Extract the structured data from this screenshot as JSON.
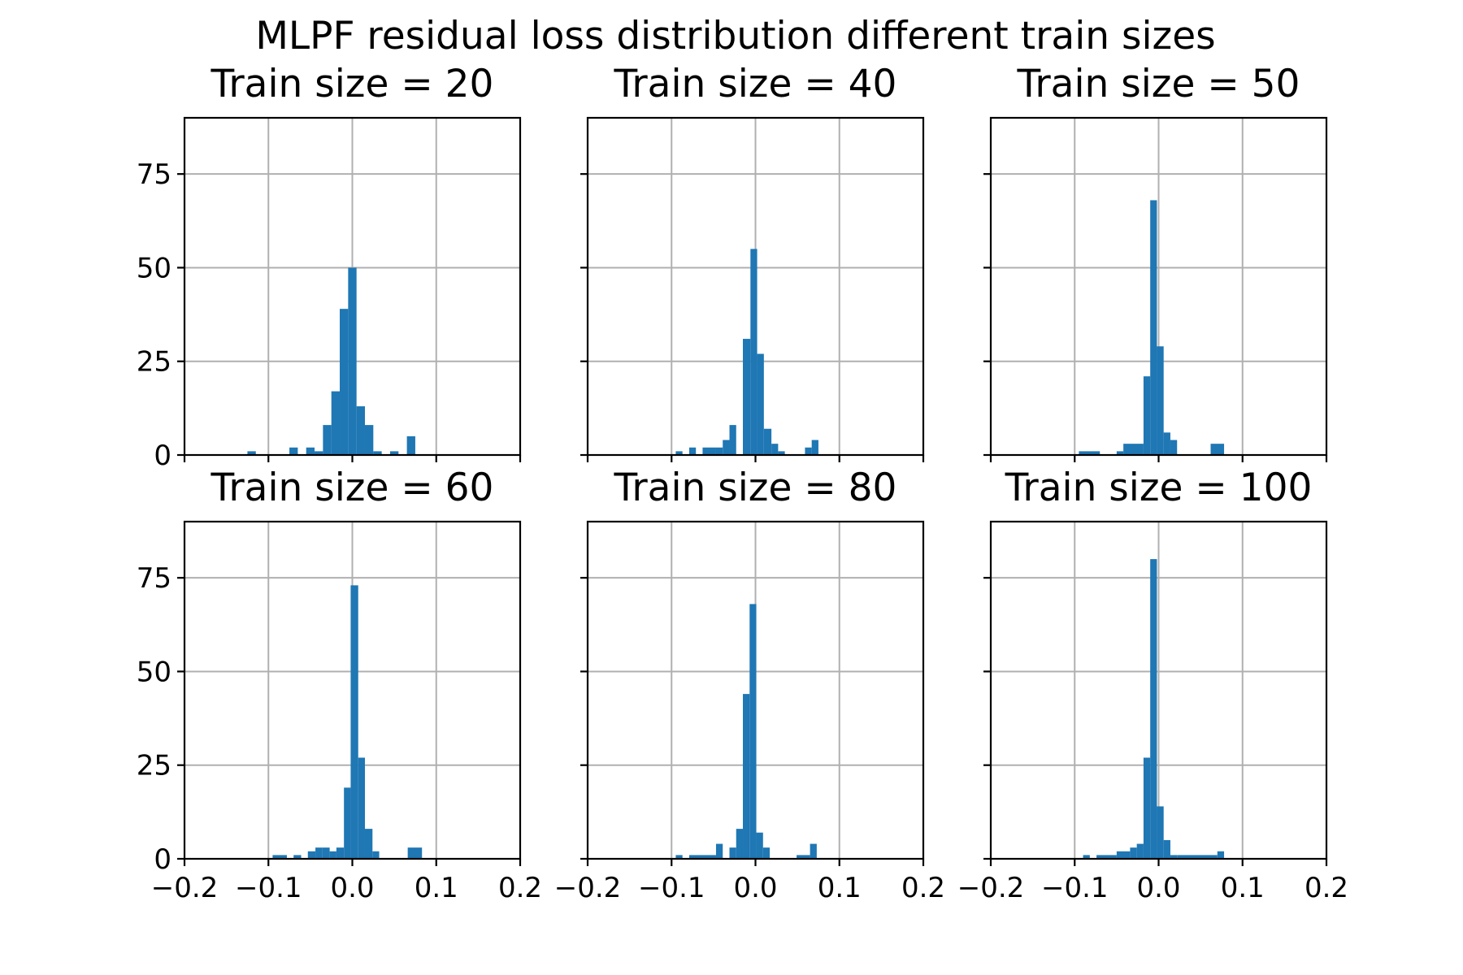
{
  "chart_data": {
    "type": "histogram",
    "suptitle": "MLPF residual loss distribution different train sizes",
    "bar_color": "#1f77b4",
    "grid": true,
    "sharey": true,
    "xlim": [
      -0.2,
      0.2
    ],
    "ylim": [
      0,
      90
    ],
    "x_ticks": [
      -0.2,
      -0.1,
      0.0,
      0.1,
      0.2
    ],
    "x_tick_labels": [
      "−0.2",
      "−0.1",
      "0.0",
      "0.1",
      "0.2"
    ],
    "y_ticks": [
      0,
      25,
      50,
      75
    ],
    "y_tick_labels": [
      "0",
      "25",
      "50",
      "75"
    ],
    "panels": [
      {
        "title": "Train size = 20",
        "bins": [
          {
            "x0": -0.125,
            "x1": -0.115,
            "count": 1
          },
          {
            "x0": -0.075,
            "x1": -0.065,
            "count": 2
          },
          {
            "x0": -0.055,
            "x1": -0.045,
            "count": 2
          },
          {
            "x0": -0.045,
            "x1": -0.035,
            "count": 1
          },
          {
            "x0": -0.035,
            "x1": -0.025,
            "count": 8
          },
          {
            "x0": -0.025,
            "x1": -0.015,
            "count": 17
          },
          {
            "x0": -0.015,
            "x1": -0.005,
            "count": 39
          },
          {
            "x0": -0.005,
            "x1": 0.005,
            "count": 50
          },
          {
            "x0": 0.005,
            "x1": 0.015,
            "count": 13
          },
          {
            "x0": 0.015,
            "x1": 0.025,
            "count": 8
          },
          {
            "x0": 0.025,
            "x1": 0.035,
            "count": 1
          },
          {
            "x0": 0.045,
            "x1": 0.055,
            "count": 1
          },
          {
            "x0": 0.065,
            "x1": 0.075,
            "count": 5
          }
        ]
      },
      {
        "title": "Train size = 40",
        "bins": [
          {
            "x0": -0.095,
            "x1": -0.087,
            "count": 1
          },
          {
            "x0": -0.079,
            "x1": -0.071,
            "count": 2
          },
          {
            "x0": -0.063,
            "x1": -0.047,
            "count": 2
          },
          {
            "x0": -0.047,
            "x1": -0.039,
            "count": 2
          },
          {
            "x0": -0.039,
            "x1": -0.031,
            "count": 4
          },
          {
            "x0": -0.031,
            "x1": -0.023,
            "count": 8
          },
          {
            "x0": -0.015,
            "x1": -0.006,
            "count": 31
          },
          {
            "x0": -0.006,
            "x1": 0.002,
            "count": 55
          },
          {
            "x0": 0.002,
            "x1": 0.01,
            "count": 27
          },
          {
            "x0": 0.01,
            "x1": 0.019,
            "count": 7
          },
          {
            "x0": 0.019,
            "x1": 0.027,
            "count": 3
          },
          {
            "x0": 0.027,
            "x1": 0.035,
            "count": 1
          },
          {
            "x0": 0.059,
            "x1": 0.067,
            "count": 2
          },
          {
            "x0": 0.067,
            "x1": 0.075,
            "count": 4
          }
        ]
      },
      {
        "title": "Train size = 50",
        "bins": [
          {
            "x0": -0.095,
            "x1": -0.07,
            "count": 1
          },
          {
            "x0": -0.05,
            "x1": -0.042,
            "count": 1
          },
          {
            "x0": -0.042,
            "x1": -0.018,
            "count": 3
          },
          {
            "x0": -0.018,
            "x1": -0.01,
            "count": 21
          },
          {
            "x0": -0.01,
            "x1": -0.002,
            "count": 68
          },
          {
            "x0": -0.002,
            "x1": 0.006,
            "count": 29
          },
          {
            "x0": 0.006,
            "x1": 0.014,
            "count": 6
          },
          {
            "x0": 0.014,
            "x1": 0.022,
            "count": 4
          },
          {
            "x0": 0.062,
            "x1": 0.078,
            "count": 3
          }
        ]
      },
      {
        "title": "Train size = 60",
        "bins": [
          {
            "x0": -0.095,
            "x1": -0.078,
            "count": 1
          },
          {
            "x0": -0.07,
            "x1": -0.061,
            "count": 1
          },
          {
            "x0": -0.053,
            "x1": -0.044,
            "count": 2
          },
          {
            "x0": -0.044,
            "x1": -0.036,
            "count": 3
          },
          {
            "x0": -0.036,
            "x1": -0.027,
            "count": 3
          },
          {
            "x0": -0.027,
            "x1": -0.019,
            "count": 2
          },
          {
            "x0": -0.019,
            "x1": -0.01,
            "count": 3
          },
          {
            "x0": -0.01,
            "x1": -0.002,
            "count": 19
          },
          {
            "x0": -0.002,
            "x1": 0.007,
            "count": 73
          },
          {
            "x0": 0.007,
            "x1": 0.015,
            "count": 27
          },
          {
            "x0": 0.015,
            "x1": 0.024,
            "count": 8
          },
          {
            "x0": 0.024,
            "x1": 0.032,
            "count": 2
          },
          {
            "x0": 0.066,
            "x1": 0.083,
            "count": 3
          }
        ]
      },
      {
        "title": "Train size = 80",
        "bins": [
          {
            "x0": -0.095,
            "x1": -0.087,
            "count": 1
          },
          {
            "x0": -0.079,
            "x1": -0.047,
            "count": 1
          },
          {
            "x0": -0.047,
            "x1": -0.039,
            "count": 4
          },
          {
            "x0": -0.031,
            "x1": -0.023,
            "count": 3
          },
          {
            "x0": -0.023,
            "x1": -0.015,
            "count": 8
          },
          {
            "x0": -0.015,
            "x1": -0.007,
            "count": 44
          },
          {
            "x0": -0.007,
            "x1": 0.001,
            "count": 68
          },
          {
            "x0": 0.001,
            "x1": 0.009,
            "count": 7
          },
          {
            "x0": 0.009,
            "x1": 0.017,
            "count": 3
          },
          {
            "x0": 0.049,
            "x1": 0.065,
            "count": 1
          },
          {
            "x0": 0.065,
            "x1": 0.073,
            "count": 4
          }
        ]
      },
      {
        "title": "Train size = 100",
        "bins": [
          {
            "x0": -0.09,
            "x1": -0.082,
            "count": 1
          },
          {
            "x0": -0.074,
            "x1": -0.05,
            "count": 1
          },
          {
            "x0": -0.05,
            "x1": -0.034,
            "count": 2
          },
          {
            "x0": -0.034,
            "x1": -0.026,
            "count": 3
          },
          {
            "x0": -0.026,
            "x1": -0.018,
            "count": 4
          },
          {
            "x0": -0.018,
            "x1": -0.01,
            "count": 27
          },
          {
            "x0": -0.01,
            "x1": -0.002,
            "count": 80
          },
          {
            "x0": -0.002,
            "x1": 0.006,
            "count": 14
          },
          {
            "x0": 0.006,
            "x1": 0.014,
            "count": 5
          },
          {
            "x0": 0.014,
            "x1": 0.022,
            "count": 1
          },
          {
            "x0": 0.022,
            "x1": 0.07,
            "count": 1
          },
          {
            "x0": 0.07,
            "x1": 0.078,
            "count": 2
          }
        ]
      }
    ]
  }
}
